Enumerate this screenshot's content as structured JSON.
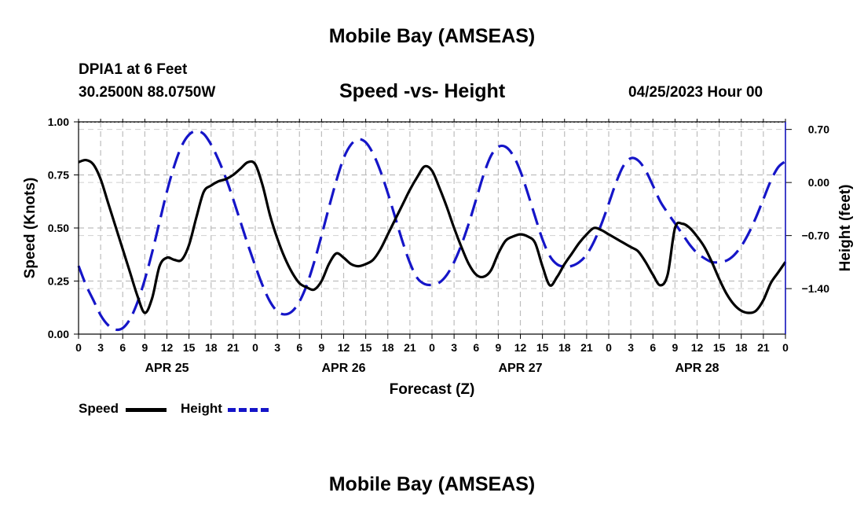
{
  "page": {
    "title": "Mobile Bay (AMSEAS)",
    "footer_title": "Mobile Bay (AMSEAS)",
    "station": "DPIA1 at 6 Feet",
    "coords": "30.2500N  88.0750W",
    "datetime": "04/25/2023 Hour 00"
  },
  "legend": {
    "speed_label": "Speed",
    "height_label": "Height",
    "speed_color": "#000000",
    "height_color": "#1515c8"
  },
  "chart_data": {
    "type": "line",
    "title": "Speed -vs- Height",
    "xlabel": "Forecast (Z)",
    "ylabel": "Speed (Knots)",
    "y2label": "Height (feet)",
    "grid": true,
    "xlim": [
      0,
      96
    ],
    "ylim": [
      0,
      1.0
    ],
    "y2lim": [
      -2.0,
      0.8
    ],
    "x_ticks": [
      0,
      3,
      6,
      9,
      12,
      15,
      18,
      21,
      24,
      27,
      30,
      33,
      36,
      39,
      42,
      45,
      48,
      51,
      54,
      57,
      60,
      63,
      66,
      69,
      72,
      75,
      78,
      81,
      84,
      87,
      90,
      93,
      96
    ],
    "x_tick_labels": [
      "0",
      "3",
      "6",
      "9",
      "12",
      "15",
      "18",
      "21",
      "0",
      "3",
      "6",
      "9",
      "12",
      "15",
      "18",
      "21",
      "0",
      "3",
      "6",
      "9",
      "12",
      "15",
      "18",
      "21",
      "0",
      "3",
      "6",
      "9",
      "12",
      "15",
      "18",
      "21",
      "0"
    ],
    "y_ticks": [
      0,
      0.25,
      0.5,
      0.75,
      1.0
    ],
    "y_tick_labels": [
      "0.00",
      "0.25",
      "0.50",
      "0.75",
      "1.00"
    ],
    "y2_ticks": [
      0.7,
      0.0,
      -0.7,
      -1.4
    ],
    "y2_tick_labels": [
      "0.70",
      "0.00",
      "−0.70",
      "−1.40"
    ],
    "day_labels": [
      {
        "x": 12,
        "label": "APR 25"
      },
      {
        "x": 36,
        "label": "APR 26"
      },
      {
        "x": 60,
        "label": "APR 27"
      },
      {
        "x": 84,
        "label": "APR 28"
      }
    ],
    "series": [
      {
        "name": "Speed",
        "axis": "left",
        "color": "#000000",
        "dash": "none",
        "x": [
          0,
          1,
          2,
          3,
          4,
          5,
          6,
          7,
          8,
          9,
          10,
          11,
          12,
          13,
          14,
          15,
          16,
          17,
          18,
          19,
          20,
          21,
          22,
          23,
          24,
          25,
          26,
          27,
          28,
          29,
          30,
          31,
          32,
          33,
          34,
          35,
          36,
          37,
          38,
          39,
          40,
          41,
          42,
          43,
          44,
          45,
          46,
          47,
          48,
          49,
          50,
          51,
          52,
          53,
          54,
          55,
          56,
          57,
          58,
          59,
          60,
          61,
          62,
          63,
          64,
          65,
          66,
          67,
          68,
          69,
          70,
          71,
          72,
          73,
          74,
          75,
          76,
          77,
          78,
          79,
          80,
          81,
          82,
          83,
          84,
          85,
          86,
          87,
          88,
          89,
          90,
          91,
          92,
          93,
          94,
          95,
          96
        ],
        "values": [
          0.81,
          0.82,
          0.8,
          0.73,
          0.62,
          0.51,
          0.4,
          0.29,
          0.18,
          0.1,
          0.17,
          0.32,
          0.36,
          0.35,
          0.35,
          0.42,
          0.55,
          0.67,
          0.7,
          0.72,
          0.73,
          0.75,
          0.78,
          0.81,
          0.8,
          0.7,
          0.56,
          0.45,
          0.36,
          0.29,
          0.24,
          0.22,
          0.21,
          0.25,
          0.33,
          0.38,
          0.36,
          0.33,
          0.32,
          0.33,
          0.35,
          0.4,
          0.47,
          0.54,
          0.61,
          0.68,
          0.74,
          0.79,
          0.77,
          0.69,
          0.6,
          0.5,
          0.41,
          0.33,
          0.28,
          0.27,
          0.3,
          0.38,
          0.44,
          0.46,
          0.47,
          0.46,
          0.43,
          0.32,
          0.23,
          0.27,
          0.33,
          0.38,
          0.43,
          0.47,
          0.5,
          0.49,
          0.47,
          0.45,
          0.43,
          0.41,
          0.39,
          0.34,
          0.28,
          0.23,
          0.28,
          0.5,
          0.52,
          0.5,
          0.46,
          0.41,
          0.34,
          0.26,
          0.19,
          0.14,
          0.11,
          0.1,
          0.11,
          0.16,
          0.24,
          0.29,
          0.34
        ]
      },
      {
        "name": "Height",
        "axis": "right",
        "color": "#1515c8",
        "dash": "22,10",
        "x": [
          0,
          1,
          2,
          3,
          4,
          5,
          6,
          7,
          8,
          9,
          10,
          11,
          12,
          13,
          14,
          15,
          16,
          17,
          18,
          19,
          20,
          21,
          22,
          23,
          24,
          25,
          26,
          27,
          28,
          29,
          30,
          31,
          32,
          33,
          34,
          35,
          36,
          37,
          38,
          39,
          40,
          41,
          42,
          43,
          44,
          45,
          46,
          47,
          48,
          49,
          50,
          51,
          52,
          53,
          54,
          55,
          56,
          57,
          58,
          59,
          60,
          61,
          62,
          63,
          64,
          65,
          66,
          67,
          68,
          69,
          70,
          71,
          72,
          73,
          74,
          75,
          76,
          77,
          78,
          79,
          80,
          81,
          82,
          83,
          84,
          85,
          86,
          87,
          88,
          89,
          90,
          91,
          92,
          93,
          94,
          95,
          96
        ],
        "values": [
          -1.1,
          -1.35,
          -1.55,
          -1.75,
          -1.88,
          -1.94,
          -1.92,
          -1.8,
          -1.58,
          -1.28,
          -0.92,
          -0.52,
          -0.12,
          0.22,
          0.48,
          0.63,
          0.68,
          0.64,
          0.5,
          0.3,
          0.06,
          -0.22,
          -0.52,
          -0.82,
          -1.1,
          -1.36,
          -1.57,
          -1.7,
          -1.74,
          -1.7,
          -1.57,
          -1.35,
          -1.05,
          -0.7,
          -0.33,
          0.02,
          0.32,
          0.5,
          0.57,
          0.53,
          0.38,
          0.15,
          -0.14,
          -0.46,
          -0.78,
          -1.06,
          -1.26,
          -1.34,
          -1.35,
          -1.32,
          -1.22,
          -1.05,
          -0.82,
          -0.54,
          -0.22,
          0.1,
          0.35,
          0.47,
          0.47,
          0.36,
          0.15,
          -0.14,
          -0.45,
          -0.75,
          -0.97,
          -1.08,
          -1.11,
          -1.1,
          -1.05,
          -0.95,
          -0.78,
          -0.55,
          -0.28,
          0.0,
          0.22,
          0.32,
          0.29,
          0.16,
          -0.04,
          -0.25,
          -0.4,
          -0.54,
          -0.68,
          -0.82,
          -0.93,
          -1.0,
          -1.05,
          -1.05,
          -1.03,
          -0.96,
          -0.84,
          -0.67,
          -0.46,
          -0.22,
          0.02,
          0.2,
          0.28
        ]
      }
    ]
  }
}
